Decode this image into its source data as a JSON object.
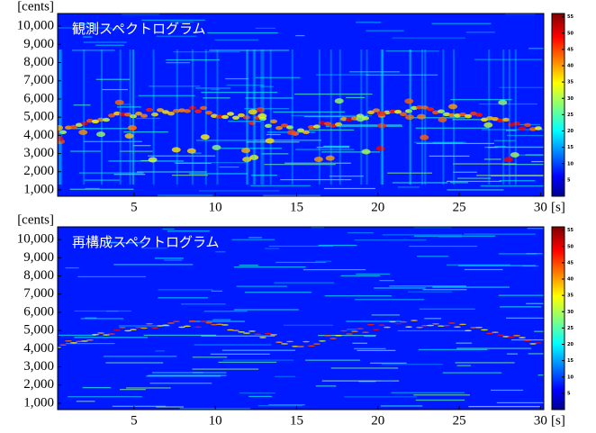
{
  "chart_data": [
    {
      "type": "spectrogram",
      "title": "観測スペクトログラム",
      "colormap": "jet",
      "x_unit": "[s]",
      "y_unit": "[cents]",
      "xlim": [
        0.3,
        30.2
      ],
      "xticks": [
        5,
        10,
        15,
        20,
        25,
        30
      ],
      "ylim": [
        650,
        10700
      ],
      "yticks": [
        {
          "value": 1000,
          "label": "1,000"
        },
        {
          "value": 2000,
          "label": "2,000"
        },
        {
          "value": 3000,
          "label": "3,000"
        },
        {
          "value": 4000,
          "label": "4,000"
        },
        {
          "value": 5000,
          "label": "5,000"
        },
        {
          "value": 6000,
          "label": "6,000"
        },
        {
          "value": 7000,
          "label": "7,000"
        },
        {
          "value": 8000,
          "label": "8,000"
        },
        {
          "value": 9000,
          "label": "9,000"
        },
        {
          "value": 10000,
          "label": "10,000"
        }
      ],
      "clim": [
        0,
        56
      ],
      "cticks": [
        5,
        10,
        15,
        20,
        25,
        30,
        35,
        40,
        45,
        50,
        55
      ]
    },
    {
      "type": "spectrogram",
      "title": "再構成スペクトログラム",
      "colormap": "jet",
      "x_unit": "[s]",
      "y_unit": "[cents]",
      "xlim": [
        0.3,
        30.2
      ],
      "xticks": [
        5,
        10,
        15,
        20,
        25,
        30
      ],
      "ylim": [
        650,
        10700
      ],
      "yticks": [
        {
          "value": 1000,
          "label": "1,000"
        },
        {
          "value": 2000,
          "label": "2,000"
        },
        {
          "value": 3000,
          "label": "3,000"
        },
        {
          "value": 4000,
          "label": "4,000"
        },
        {
          "value": 5000,
          "label": "5,000"
        },
        {
          "value": 6000,
          "label": "6,000"
        },
        {
          "value": 7000,
          "label": "7,000"
        },
        {
          "value": 8000,
          "label": "8,000"
        },
        {
          "value": 9000,
          "label": "9,000"
        },
        {
          "value": 10000,
          "label": "10,000"
        }
      ],
      "clim": [
        0,
        56
      ],
      "cticks": [
        5,
        10,
        15,
        20,
        25,
        30,
        35,
        40,
        45,
        50,
        55
      ]
    }
  ]
}
